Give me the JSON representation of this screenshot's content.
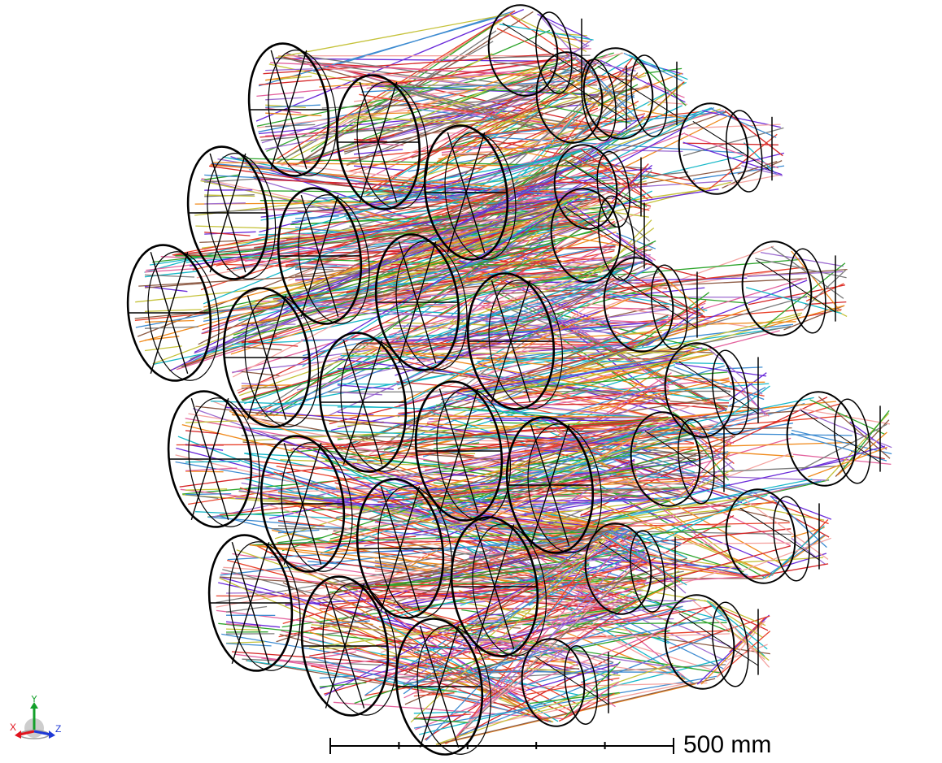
{
  "scale_bar": {
    "label": "500 mm",
    "ticks": 5
  },
  "axes": {
    "x_label": "X",
    "y_label": "Y",
    "z_label": "Z",
    "x_color": "#e0141e",
    "y_color": "#13a02a",
    "z_color": "#1f3ad6"
  },
  "colors": {
    "outline": "#000000",
    "background": "#ffffff",
    "rays": [
      "#e8402a",
      "#f08a1c",
      "#3d8bd1",
      "#2fa52d",
      "#9c6bd0",
      "#8c5a44",
      "#e3629d",
      "#f4a3a0",
      "#c5c23a",
      "#17b8c8",
      "#7a7a7a",
      "#d62728",
      "#6a2bd9"
    ]
  }
}
